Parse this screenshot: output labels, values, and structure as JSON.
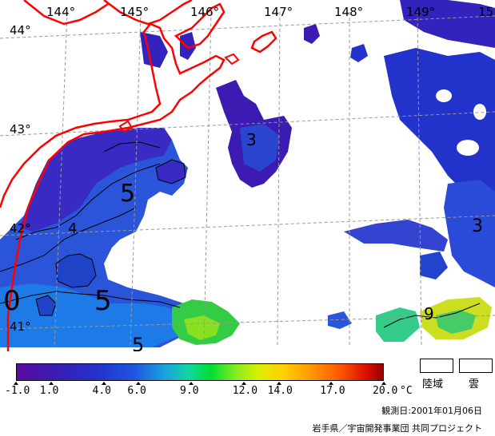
{
  "map": {
    "lon_labels": [
      "144°",
      "145°",
      "146°",
      "147°",
      "148°",
      "149°",
      "15"
    ],
    "lat_labels": [
      "44°",
      "43°",
      "42°",
      "41°"
    ],
    "contour_labels": [
      "3",
      "5",
      "4",
      "5",
      "0",
      "5",
      "9",
      "3"
    ]
  },
  "colorbar": {
    "unit": "°C",
    "ticks": [
      "-1.0",
      "1.0",
      "4.0",
      "6.0",
      "9.0",
      "12.0",
      "14.0",
      "17.0",
      "20.0"
    ],
    "tick_values": [
      -1.0,
      1.0,
      4.0,
      6.0,
      9.0,
      12.0,
      14.0,
      17.0,
      20.0
    ],
    "min": -1.0,
    "max": 20.0
  },
  "legend": {
    "land": "陸域",
    "cloud": "雲"
  },
  "footer": {
    "date": "観測日:2001年01月06日",
    "credit": "岩手県／宇宙開発事業団 共同プロジェクト"
  },
  "colors": {
    "coastline": "#ff0000",
    "cold": "#3a24c0",
    "mid": "#1f60e0",
    "warm": "#33dd33",
    "cloud": "#ffffff"
  }
}
